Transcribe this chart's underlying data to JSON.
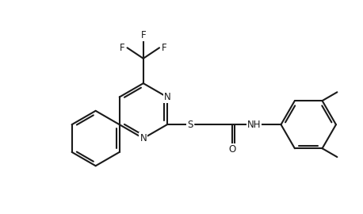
{
  "background_color": "#ffffff",
  "line_color": "#1a1a1a",
  "line_width": 1.5,
  "font_size": 8.5,
  "fig_width": 4.58,
  "fig_height": 2.7,
  "dpi": 100,
  "xlim": [
    0,
    9.5
  ],
  "ylim": [
    0,
    5.5
  ]
}
